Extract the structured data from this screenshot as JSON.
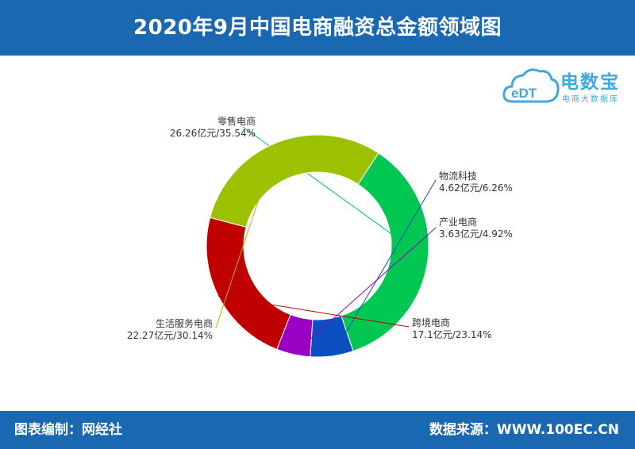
{
  "header": {
    "title": "2020年9月中国电商融资总金额领域图"
  },
  "logo": {
    "mark": "eDT",
    "name": "电数宝",
    "subtitle": "电商大数据库"
  },
  "footer": {
    "left": "图表编制：网经社",
    "right": "数据来源：WWW.100EC.CN"
  },
  "colors": {
    "header": "#1a68b2",
    "logo": "#3fa8dd"
  },
  "chart_data": {
    "type": "pie",
    "style": "donut",
    "title": "2020年9月中国电商融资总金额领域图",
    "unit": "亿元",
    "series": [
      {
        "name": "零售电商",
        "value": 26.26,
        "percent": 35.54,
        "label": "26.26亿元/35.54%",
        "color": "#00c752"
      },
      {
        "name": "物流科技",
        "value": 4.62,
        "percent": 6.26,
        "label": "4.62亿元/6.26%",
        "color": "#0b4fc1"
      },
      {
        "name": "产业电商",
        "value": 3.63,
        "percent": 4.92,
        "label": "3.63亿元/4.92%",
        "color": "#9a01c2"
      },
      {
        "name": "跨境电商",
        "value": 17.1,
        "percent": 23.14,
        "label": "17.1亿元/23.14%",
        "color": "#c00000"
      },
      {
        "name": "生活服务电商",
        "value": 22.27,
        "percent": 30.14,
        "label": "22.27亿元/30.14%",
        "color": "#9bc101"
      }
    ]
  }
}
